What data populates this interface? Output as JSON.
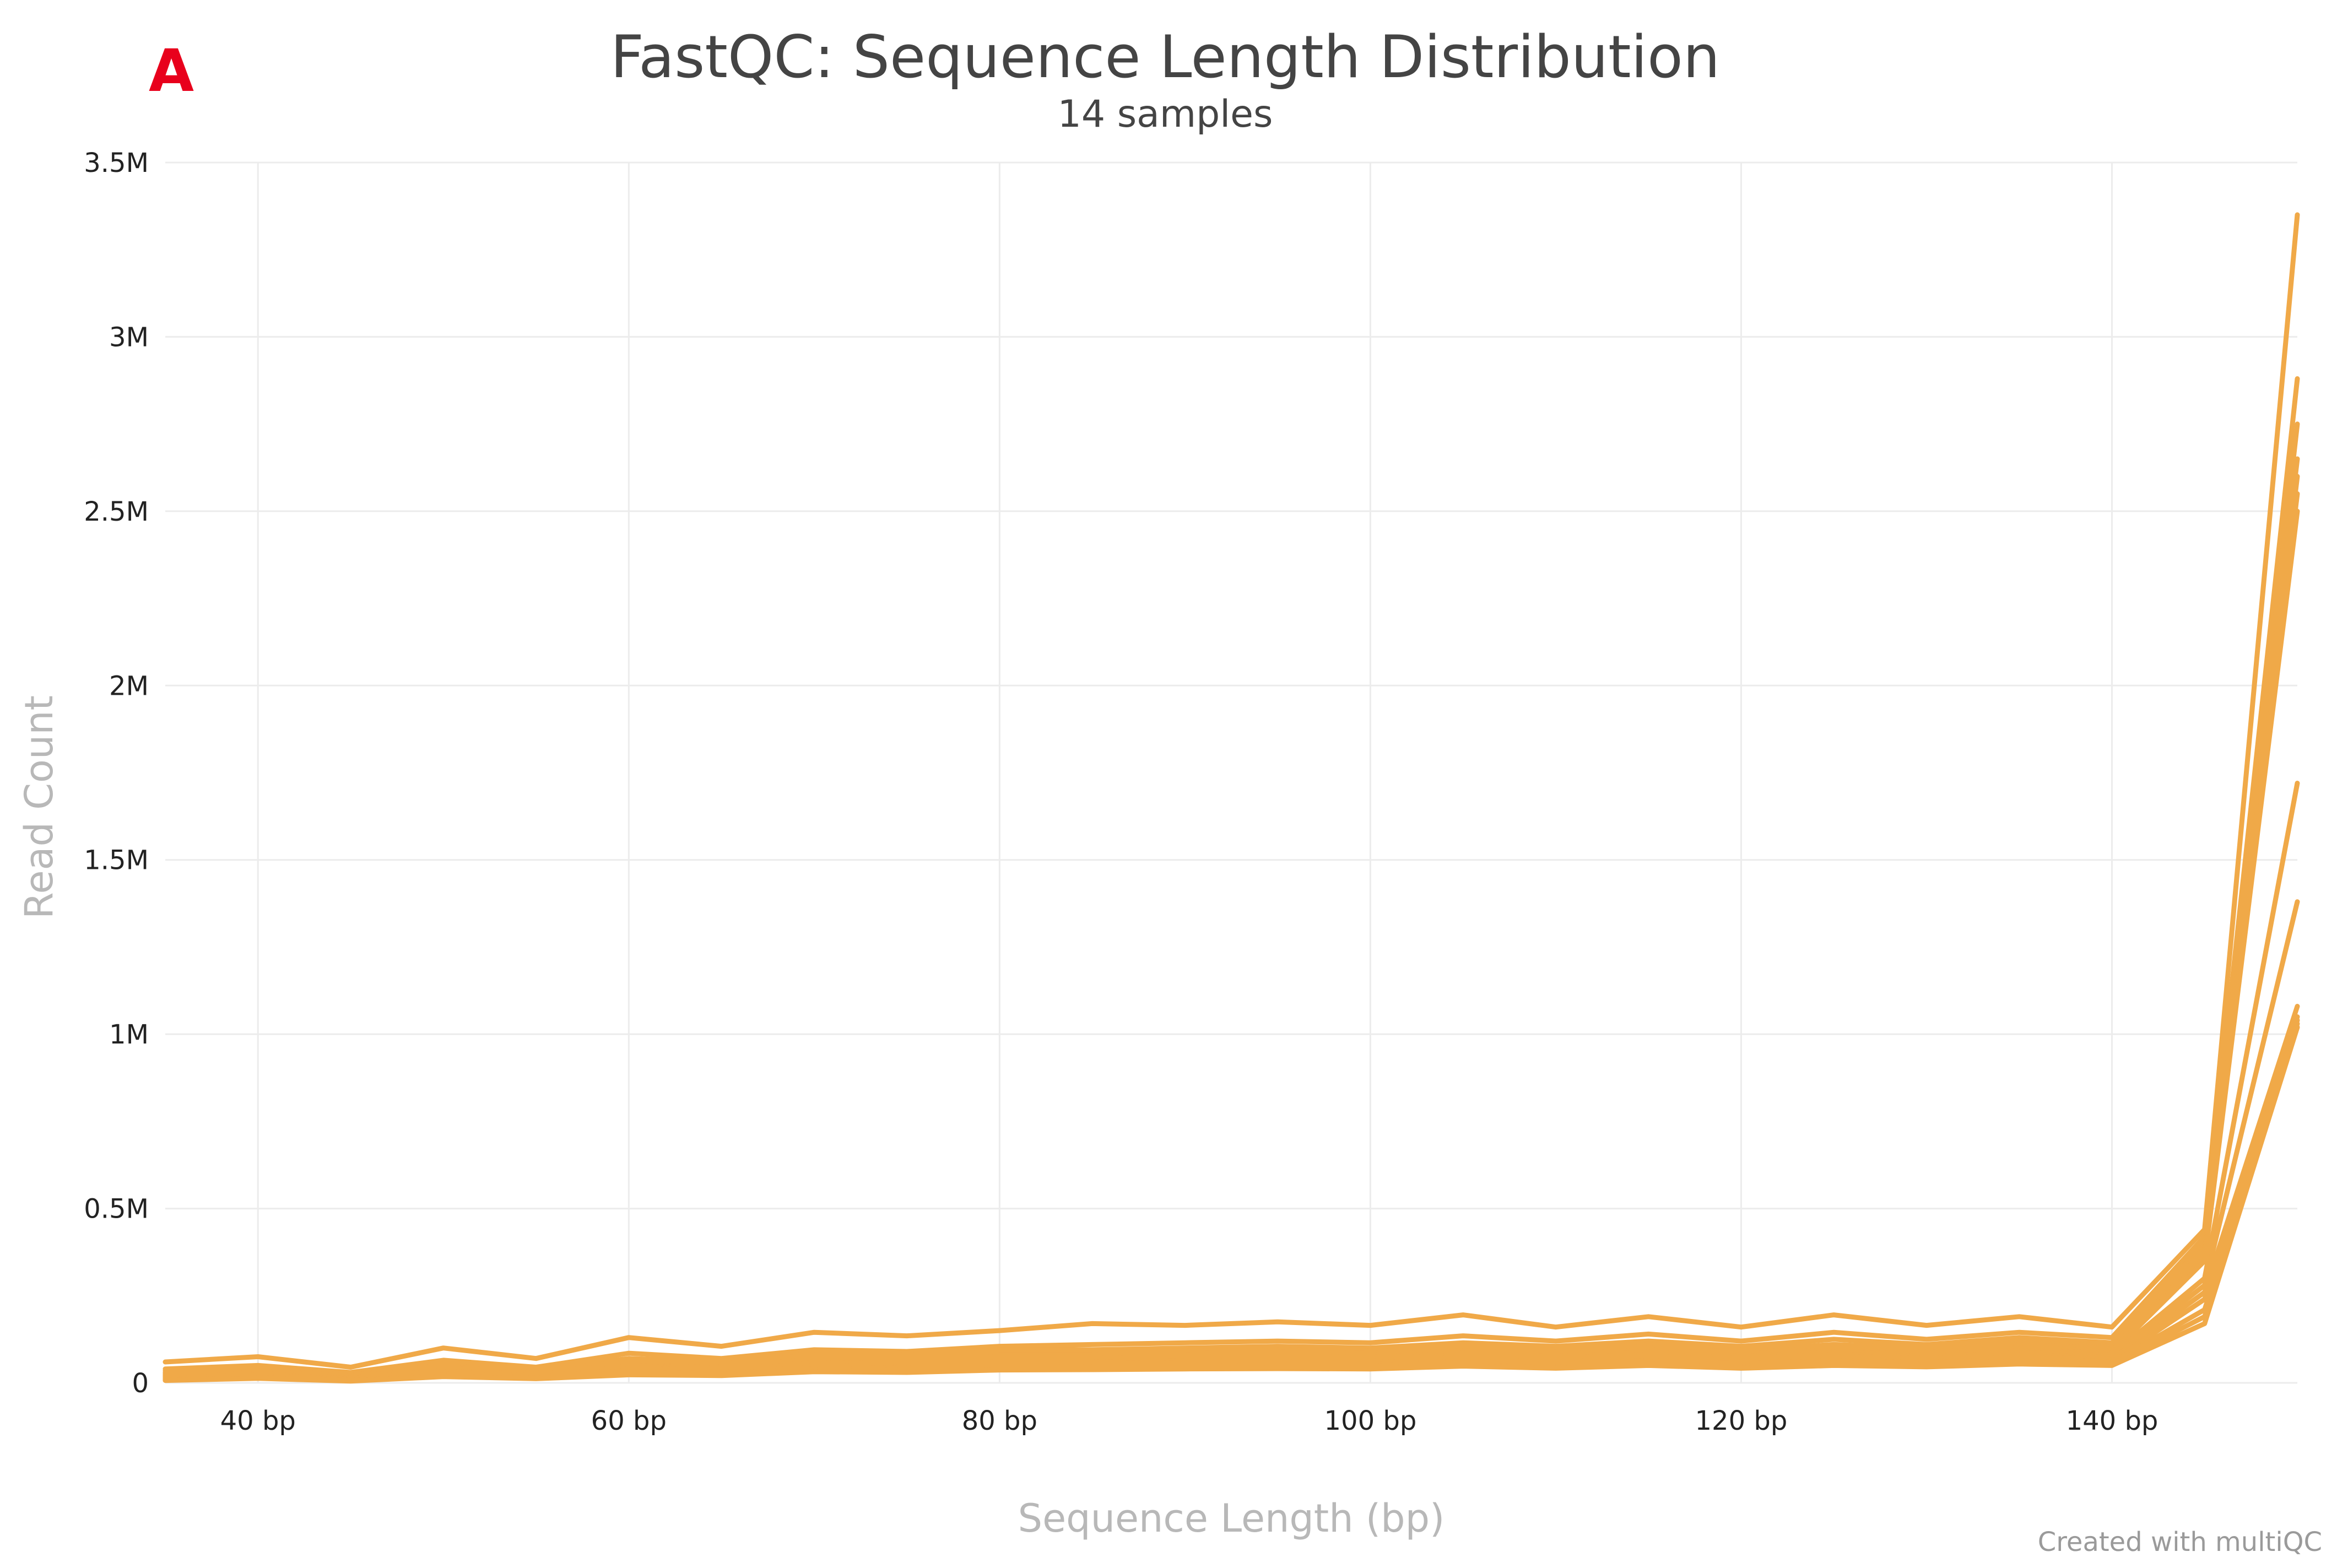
{
  "panel_label": "A",
  "colors": {
    "series": "#f0a948",
    "panel_label": "#e8001c"
  },
  "credit": "Created with multiQC",
  "chart_data": {
    "type": "line",
    "title": "FastQC: Sequence Length Distribution",
    "subtitle": "14 samples",
    "xlabel": "Sequence Length (bp)",
    "ylabel": "Read Count",
    "xlim": [
      35,
      150
    ],
    "ylim": [
      0,
      3500000
    ],
    "grid": true,
    "legend": "none",
    "x_ticks": [
      {
        "value": 40,
        "label": "40 bp"
      },
      {
        "value": 60,
        "label": "60 bp"
      },
      {
        "value": 80,
        "label": "80 bp"
      },
      {
        "value": 100,
        "label": "100 bp"
      },
      {
        "value": 120,
        "label": "120 bp"
      },
      {
        "value": 140,
        "label": "140 bp"
      }
    ],
    "y_ticks": [
      {
        "value": 0,
        "label": "0"
      },
      {
        "value": 500000,
        "label": "0.5M"
      },
      {
        "value": 1000000,
        "label": "1M"
      },
      {
        "value": 1500000,
        "label": "1.5M"
      },
      {
        "value": 2000000,
        "label": "2M"
      },
      {
        "value": 2500000,
        "label": "2.5M"
      },
      {
        "value": 3000000,
        "label": "3M"
      },
      {
        "value": 3500000,
        "label": "3.5M"
      }
    ],
    "x": [
      35,
      40,
      45,
      50,
      55,
      60,
      65,
      70,
      75,
      80,
      85,
      90,
      95,
      100,
      105,
      110,
      115,
      120,
      125,
      130,
      135,
      140,
      145,
      150
    ],
    "series": [
      {
        "values": [
          60000,
          75000,
          45000,
          100000,
          70000,
          130000,
          105000,
          145000,
          135000,
          150000,
          170000,
          165000,
          175000,
          165000,
          195000,
          160000,
          190000,
          160000,
          195000,
          165000,
          190000,
          160000,
          440000,
          3350000
        ]
      },
      {
        "values": [
          40000,
          50000,
          30000,
          65000,
          45000,
          85000,
          70000,
          95000,
          90000,
          105000,
          110000,
          115000,
          120000,
          115000,
          135000,
          120000,
          140000,
          120000,
          145000,
          125000,
          145000,
          130000,
          420000,
          2880000
        ]
      },
      {
        "values": [
          35000,
          45000,
          25000,
          55000,
          38000,
          70000,
          60000,
          85000,
          80000,
          95000,
          95000,
          100000,
          105000,
          100000,
          115000,
          105000,
          120000,
          105000,
          125000,
          110000,
          130000,
          115000,
          400000,
          2750000
        ]
      },
      {
        "values": [
          30000,
          40000,
          22000,
          50000,
          35000,
          60000,
          55000,
          80000,
          75000,
          90000,
          88000,
          90000,
          95000,
          92000,
          105000,
          95000,
          110000,
          95000,
          110000,
          100000,
          120000,
          105000,
          380000,
          2650000
        ]
      },
      {
        "values": [
          28000,
          36000,
          20000,
          45000,
          32000,
          55000,
          50000,
          72000,
          70000,
          80000,
          80000,
          85000,
          88000,
          85000,
          98000,
          88000,
          100000,
          88000,
          100000,
          92000,
          110000,
          98000,
          370000,
          2600000
        ]
      },
      {
        "values": [
          25000,
          33000,
          18000,
          42000,
          30000,
          52000,
          46000,
          68000,
          65000,
          75000,
          75000,
          80000,
          82000,
          80000,
          92000,
          82000,
          95000,
          82000,
          95000,
          88000,
          100000,
          92000,
          360000,
          2550000
        ]
      },
      {
        "values": [
          22000,
          30000,
          15000,
          38000,
          28000,
          48000,
          42000,
          62000,
          60000,
          70000,
          70000,
          74000,
          76000,
          74000,
          86000,
          76000,
          88000,
          76000,
          88000,
          82000,
          92000,
          86000,
          350000,
          2500000
        ]
      },
      {
        "values": [
          20000,
          28000,
          13000,
          35000,
          25000,
          45000,
          40000,
          58000,
          55000,
          65000,
          65000,
          68000,
          70000,
          68000,
          80000,
          70000,
          82000,
          70000,
          82000,
          76000,
          86000,
          80000,
          300000,
          1720000
        ]
      },
      {
        "values": [
          18000,
          25000,
          12000,
          32000,
          22000,
          42000,
          36000,
          54000,
          50000,
          60000,
          60000,
          63000,
          65000,
          63000,
          74000,
          65000,
          76000,
          65000,
          76000,
          70000,
          80000,
          74000,
          280000,
          1380000
        ]
      },
      {
        "values": [
          15000,
          22000,
          10000,
          30000,
          20000,
          38000,
          33000,
          50000,
          46000,
          56000,
          55000,
          58000,
          60000,
          58000,
          68000,
          60000,
          70000,
          60000,
          70000,
          64000,
          74000,
          68000,
          260000,
          1080000
        ]
      },
      {
        "values": [
          12000,
          20000,
          8000,
          26000,
          18000,
          34000,
          30000,
          45000,
          42000,
          50000,
          50000,
          52000,
          54000,
          52000,
          62000,
          55000,
          64000,
          55000,
          64000,
          58000,
          68000,
          62000,
          240000,
          1050000
        ]
      },
      {
        "values": [
          10000,
          18000,
          7000,
          22000,
          16000,
          30000,
          27000,
          40000,
          38000,
          45000,
          46000,
          48000,
          50000,
          48000,
          58000,
          50000,
          60000,
          50000,
          58000,
          54000,
          62000,
          58000,
          210000,
          1040000
        ]
      },
      {
        "values": [
          8000,
          15000,
          6000,
          20000,
          14000,
          26000,
          24000,
          36000,
          34000,
          41000,
          42000,
          44000,
          45000,
          44000,
          52000,
          46000,
          54000,
          46000,
          54000,
          50000,
          58000,
          54000,
          190000,
          1030000
        ]
      },
      {
        "values": [
          7000,
          13000,
          5000,
          18000,
          12000,
          23000,
          21000,
          32000,
          30000,
          37000,
          38000,
          40000,
          41000,
          40000,
          48000,
          42000,
          50000,
          42000,
          50000,
          46000,
          54000,
          50000,
          170000,
          1020000
        ]
      }
    ]
  }
}
